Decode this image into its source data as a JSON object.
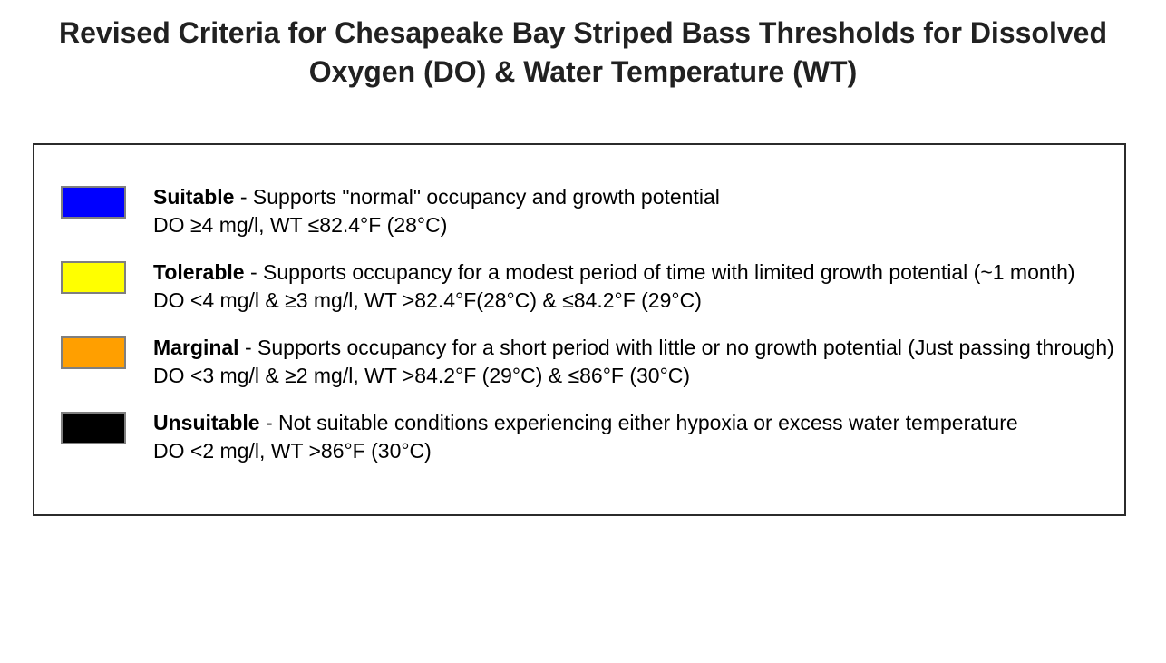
{
  "title": "Revised Criteria for Chesapeake Bay Striped Bass Thresholds for Dissolved Oxygen (DO) & Water Temperature (WT)",
  "legend": {
    "items": [
      {
        "name": "Suitable",
        "description": "- Supports \"normal\" occupancy and growth potential",
        "criteria": "DO ≥4 mg/l, WT ≤82.4°F (28°C)",
        "color": "#0000ff"
      },
      {
        "name": "Tolerable",
        "description": "- Supports occupancy for a modest period of time with limited growth potential (~1 month)",
        "criteria": "DO <4 mg/l & ≥3 mg/l, WT >82.4°F(28°C) & ≤84.2°F (29°C)",
        "color": "#ffff00"
      },
      {
        "name": "Marginal",
        "description": "- Supports occupancy for a short period with little or no growth potential (Just passing through)",
        "criteria": "DO <3 mg/l & ≥2 mg/l, WT >84.2°F (29°C) & ≤86°F (30°C)",
        "color": "#ff9f00"
      },
      {
        "name": "Unsuitable",
        "description": "- Not suitable conditions experiencing either hypoxia or excess water temperature",
        "criteria": "DO <2 mg/l, WT >86°F (30°C)",
        "color": "#000000"
      }
    ]
  }
}
